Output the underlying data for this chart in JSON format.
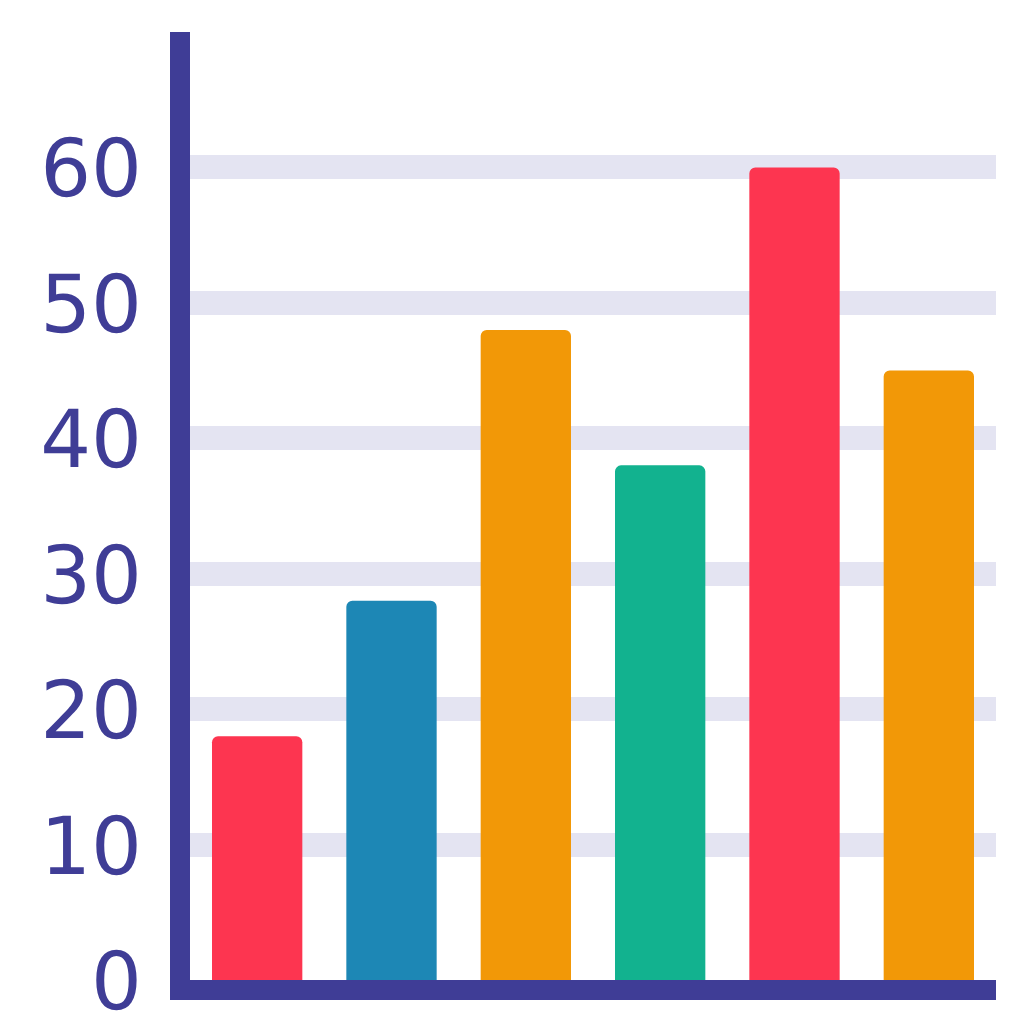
{
  "chart_data": {
    "type": "bar",
    "categories": [
      null,
      null,
      null,
      null,
      null,
      null
    ],
    "values": [
      18,
      28,
      48,
      38,
      60,
      45
    ],
    "colors": [
      "#fd3550",
      "#1d87b5",
      "#f29807",
      "#12b28f",
      "#fd3550",
      "#f29807"
    ],
    "ylim": [
      0,
      70
    ],
    "yticks": [
      0,
      10,
      20,
      30,
      40,
      50,
      60
    ],
    "grid": "y",
    "legend": false,
    "tick_labels": "y"
  }
}
